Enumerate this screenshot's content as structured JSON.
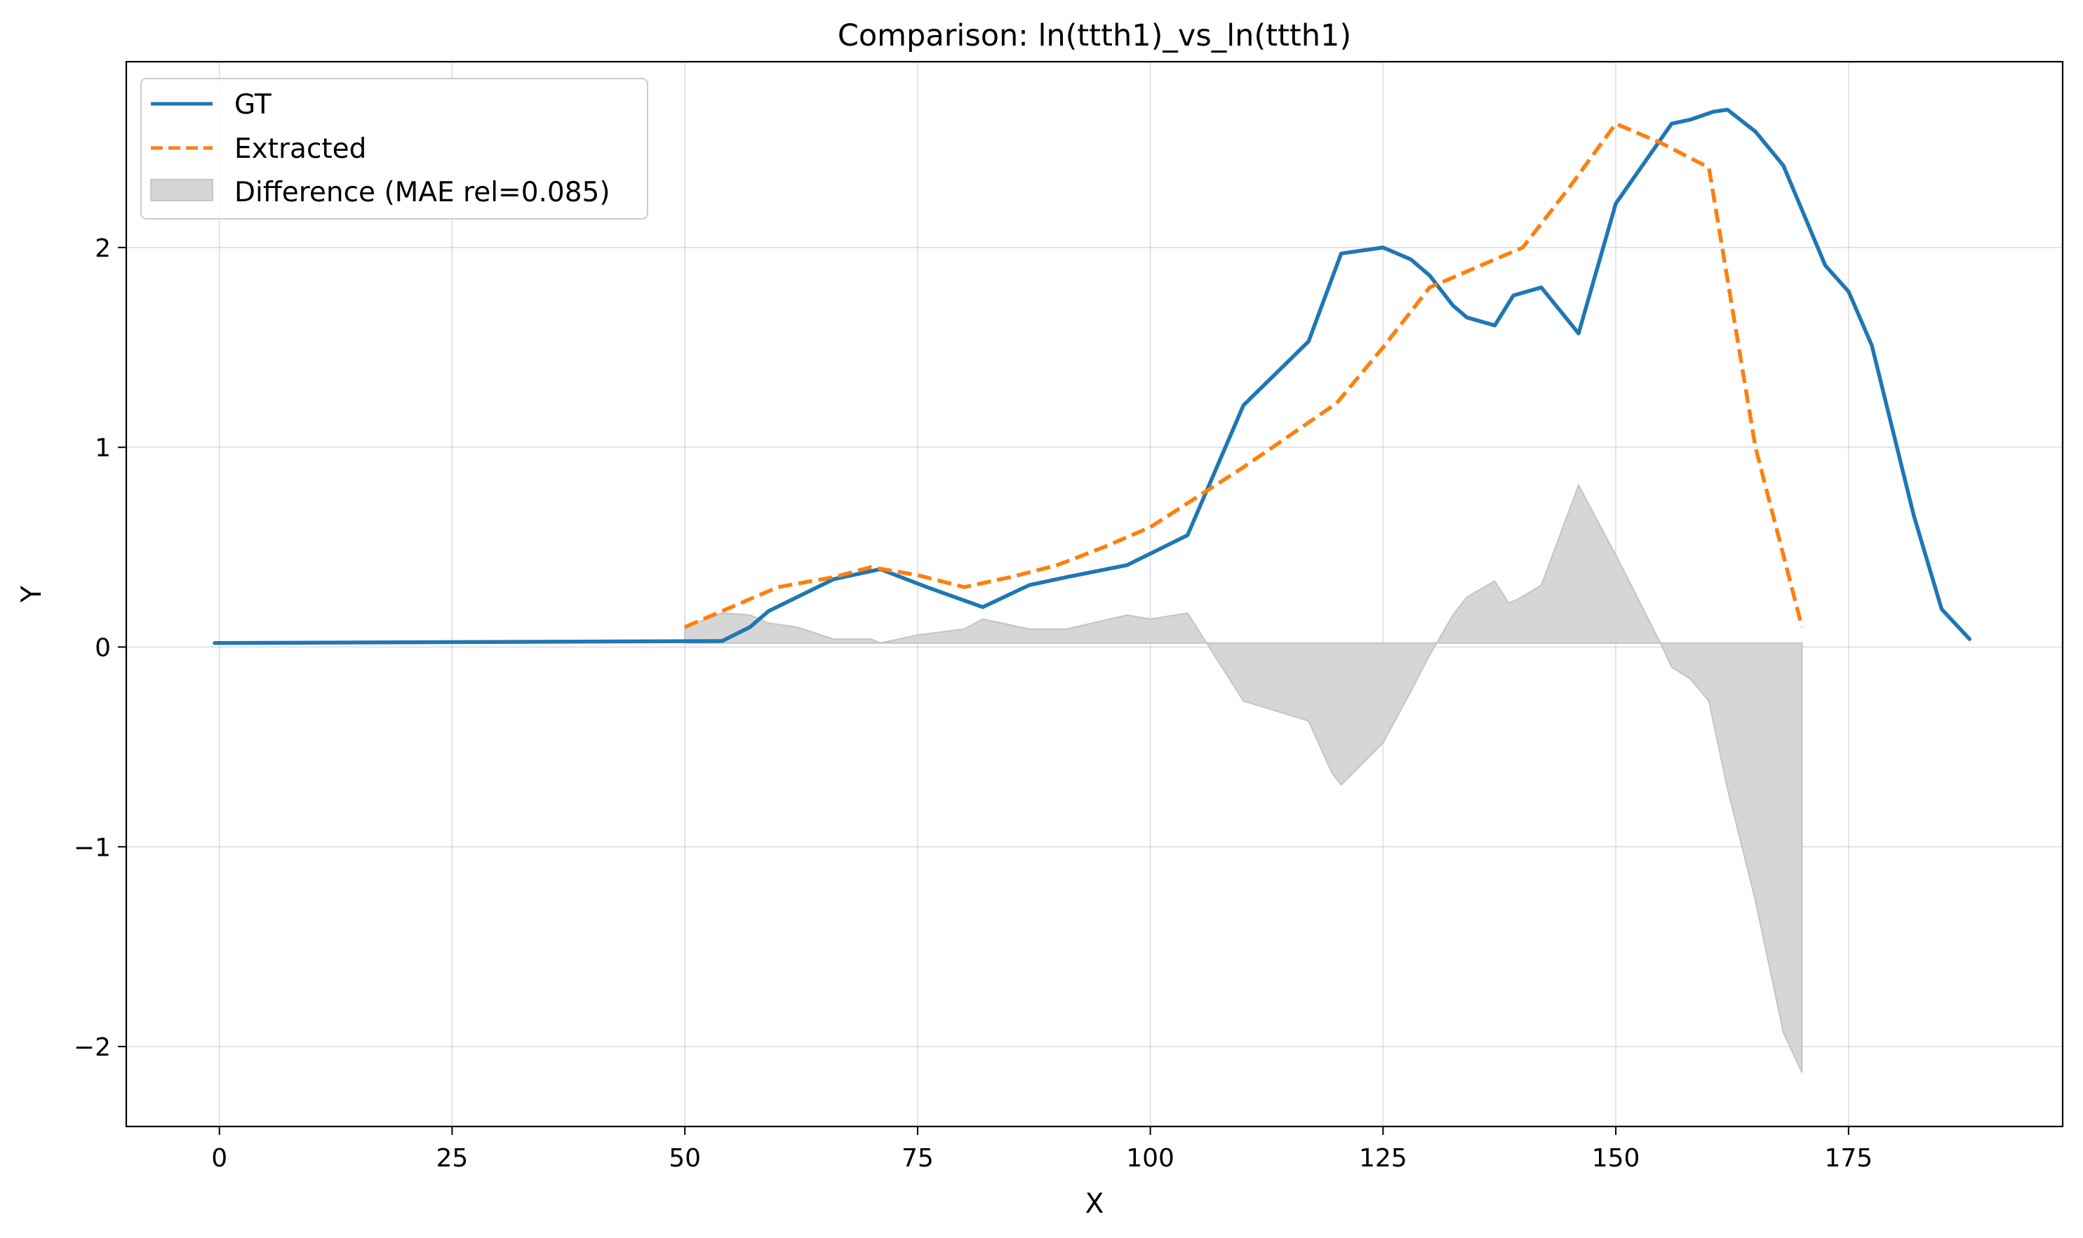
{
  "chart_data": {
    "type": "line",
    "title": "Comparison: ln(ttth1)_vs_ln(ttth1)",
    "xlabel": "X",
    "ylabel": "Y",
    "xlim": [
      -10,
      198
    ],
    "ylim": [
      -2.4,
      2.93
    ],
    "xticks": [
      0,
      25,
      50,
      75,
      100,
      125,
      150,
      175
    ],
    "yticks": [
      -2,
      -1,
      0,
      1,
      2
    ],
    "grid": true,
    "legend_position": "top-left",
    "series": [
      {
        "name": "GT",
        "color": "#1f77b4",
        "style": "solid",
        "x": [
          -0.5,
          54,
          57,
          59,
          66,
          71,
          76,
          82,
          87,
          91,
          97.5,
          104,
          110,
          117,
          120.5,
          125,
          128,
          130,
          132.5,
          134,
          137,
          139,
          142,
          146,
          150,
          156,
          158,
          160.5,
          162,
          165,
          168,
          172.5,
          175,
          177.5,
          182,
          185,
          188
        ],
        "y": [
          0.02,
          0.03,
          0.1,
          0.18,
          0.34,
          0.39,
          0.3,
          0.2,
          0.31,
          0.35,
          0.41,
          0.56,
          1.21,
          1.53,
          1.97,
          2.0,
          1.94,
          1.86,
          1.71,
          1.65,
          1.61,
          1.76,
          1.8,
          1.57,
          2.22,
          2.62,
          2.64,
          2.68,
          2.69,
          2.58,
          2.41,
          1.91,
          1.78,
          1.51,
          0.66,
          0.19,
          0.04
        ]
      },
      {
        "name": "Extracted",
        "color": "#ff7f0e",
        "style": "dashed",
        "x": [
          50,
          55,
          60,
          66,
          70,
          75,
          80,
          85,
          90,
          95,
          100,
          105,
          110,
          115,
          120,
          125,
          130,
          135,
          140,
          145,
          150,
          155,
          160,
          165,
          170
        ],
        "y": [
          0.1,
          0.2,
          0.3,
          0.35,
          0.4,
          0.36,
          0.3,
          0.35,
          0.41,
          0.5,
          0.6,
          0.75,
          0.9,
          1.06,
          1.22,
          1.5,
          1.8,
          1.9,
          2.0,
          2.3,
          2.62,
          2.52,
          2.4,
          1.0,
          0.1
        ]
      }
    ],
    "difference_fill": {
      "name": "Difference (MAE rel=0.085)",
      "color": "#d6d6d6",
      "baseline": 0.02,
      "x": [
        50,
        54,
        57,
        59,
        62,
        66,
        70,
        71,
        75,
        80,
        82,
        87,
        91,
        97.5,
        100,
        104,
        110,
        117,
        119.5,
        120.5,
        125,
        128,
        130,
        132.5,
        134,
        137,
        138.5,
        139.5,
        142,
        146,
        150,
        151,
        155,
        156,
        158,
        160,
        162,
        165,
        168,
        170
      ],
      "y": [
        0.1,
        0.17,
        0.16,
        0.12,
        0.1,
        0.04,
        0.04,
        0.02,
        0.06,
        0.09,
        0.14,
        0.09,
        0.09,
        0.16,
        0.14,
        0.17,
        -0.27,
        -0.37,
        -0.63,
        -0.69,
        -0.48,
        -0.22,
        -0.04,
        0.16,
        0.25,
        0.33,
        0.22,
        0.24,
        0.31,
        0.81,
        0.46,
        0.37,
        0.0,
        -0.1,
        -0.16,
        -0.27,
        -0.71,
        -1.27,
        -1.93,
        -2.13
      ]
    }
  }
}
